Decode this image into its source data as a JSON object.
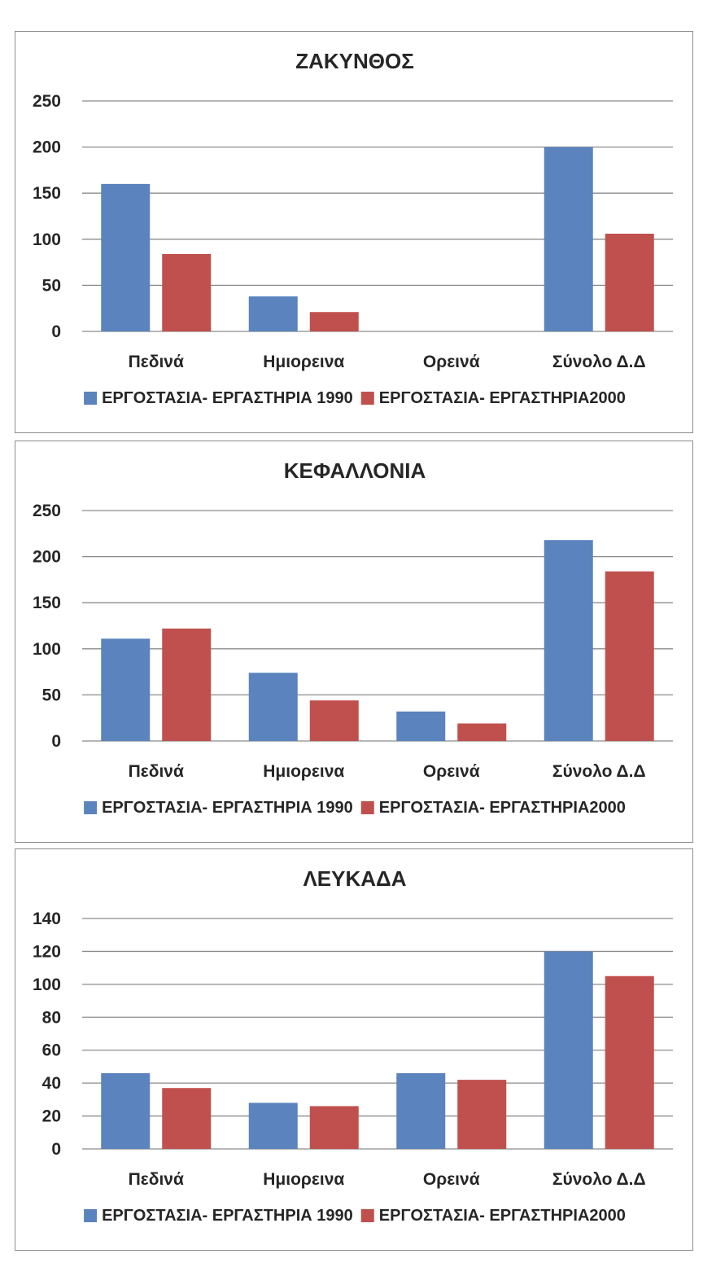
{
  "colors": {
    "series_1990": "#5b83bd",
    "series_2000": "#c0504d",
    "grid": "#8c8c8c",
    "axis_text": "#262626"
  },
  "chart_data": [
    {
      "type": "bar",
      "title": "ΖΑΚΥΝΘΟΣ",
      "categories": [
        "Πεδινά",
        "Ημιορεινα",
        "Ορεινά",
        "Σύνολο Δ.Δ"
      ],
      "series": [
        {
          "name": "ΕΡΓΟΣΤΑΣΙΑ- ΕΡΓΑΣΤΗΡΙΑ 1990",
          "values": [
            160,
            38,
            0,
            200
          ]
        },
        {
          "name": "ΕΡΓΟΣΤΑΣΙΑ- ΕΡΓΑΣΤΗΡΙΑ2000",
          "values": [
            84,
            21,
            0,
            106
          ]
        }
      ],
      "ylim": [
        0,
        250
      ],
      "yticks": [
        "0",
        "50",
        "100",
        "150",
        "200",
        "250"
      ],
      "grid": true,
      "legend": "bottom"
    },
    {
      "type": "bar",
      "title": "ΚΕΦΑΛΛΟΝΙΑ",
      "categories": [
        "Πεδινά",
        "Ημιορεινα",
        "Ορεινά",
        "Σύνολο Δ.Δ"
      ],
      "series": [
        {
          "name": "ΕΡΓΟΣΤΑΣΙΑ- ΕΡΓΑΣΤΗΡΙΑ 1990",
          "values": [
            111,
            74,
            32,
            218
          ]
        },
        {
          "name": "ΕΡΓΟΣΤΑΣΙΑ- ΕΡΓΑΣΤΗΡΙΑ2000",
          "values": [
            122,
            44,
            19,
            184
          ]
        }
      ],
      "ylim": [
        0,
        250
      ],
      "yticks": [
        "0",
        "50",
        "100",
        "150",
        "200",
        "250"
      ],
      "grid": true,
      "legend": "bottom"
    },
    {
      "type": "bar",
      "title": "ΛΕΥΚΑΔΑ",
      "categories": [
        "Πεδινά",
        "Ημιορεινα",
        "Ορεινά",
        "Σύνολο Δ.Δ"
      ],
      "series": [
        {
          "name": "ΕΡΓΟΣΤΑΣΙΑ- ΕΡΓΑΣΤΗΡΙΑ 1990",
          "values": [
            46,
            28,
            46,
            120
          ]
        },
        {
          "name": "ΕΡΓΟΣΤΑΣΙΑ- ΕΡΓΑΣΤΗΡΙΑ2000",
          "values": [
            37,
            26,
            42,
            105
          ]
        }
      ],
      "ylim": [
        0,
        140
      ],
      "yticks": [
        "0",
        "20",
        "40",
        "60",
        "80",
        "100",
        "120",
        "140"
      ],
      "grid": true,
      "legend": "bottom"
    }
  ]
}
